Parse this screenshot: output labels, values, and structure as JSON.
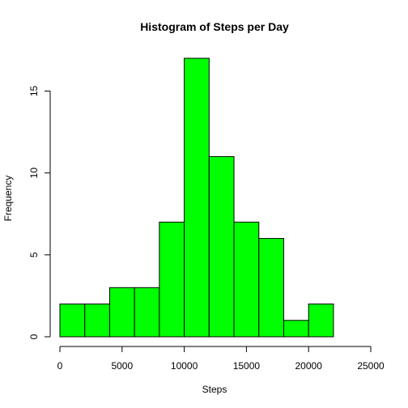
{
  "chart_data": {
    "type": "bar",
    "title": "Histogram of Steps per Day",
    "xlabel": "Steps",
    "ylabel": "Frequency",
    "bin_edges": [
      0,
      2000,
      4000,
      6000,
      8000,
      10000,
      12000,
      14000,
      16000,
      18000,
      20000,
      22000
    ],
    "values": [
      2,
      2,
      3,
      3,
      7,
      17,
      11,
      7,
      6,
      1,
      2
    ],
    "xlim": [
      0,
      25000
    ],
    "ylim": [
      0,
      17
    ],
    "x_ticks": [
      0,
      5000,
      10000,
      15000,
      20000,
      25000
    ],
    "x_tick_labels": [
      "0",
      "5000",
      "10000",
      "15000",
      "20000",
      "25000"
    ],
    "y_ticks": [
      0,
      5,
      10,
      15
    ],
    "y_tick_labels": [
      "0",
      "5",
      "10",
      "15"
    ],
    "bar_color": "#00ff00",
    "grid": false
  }
}
